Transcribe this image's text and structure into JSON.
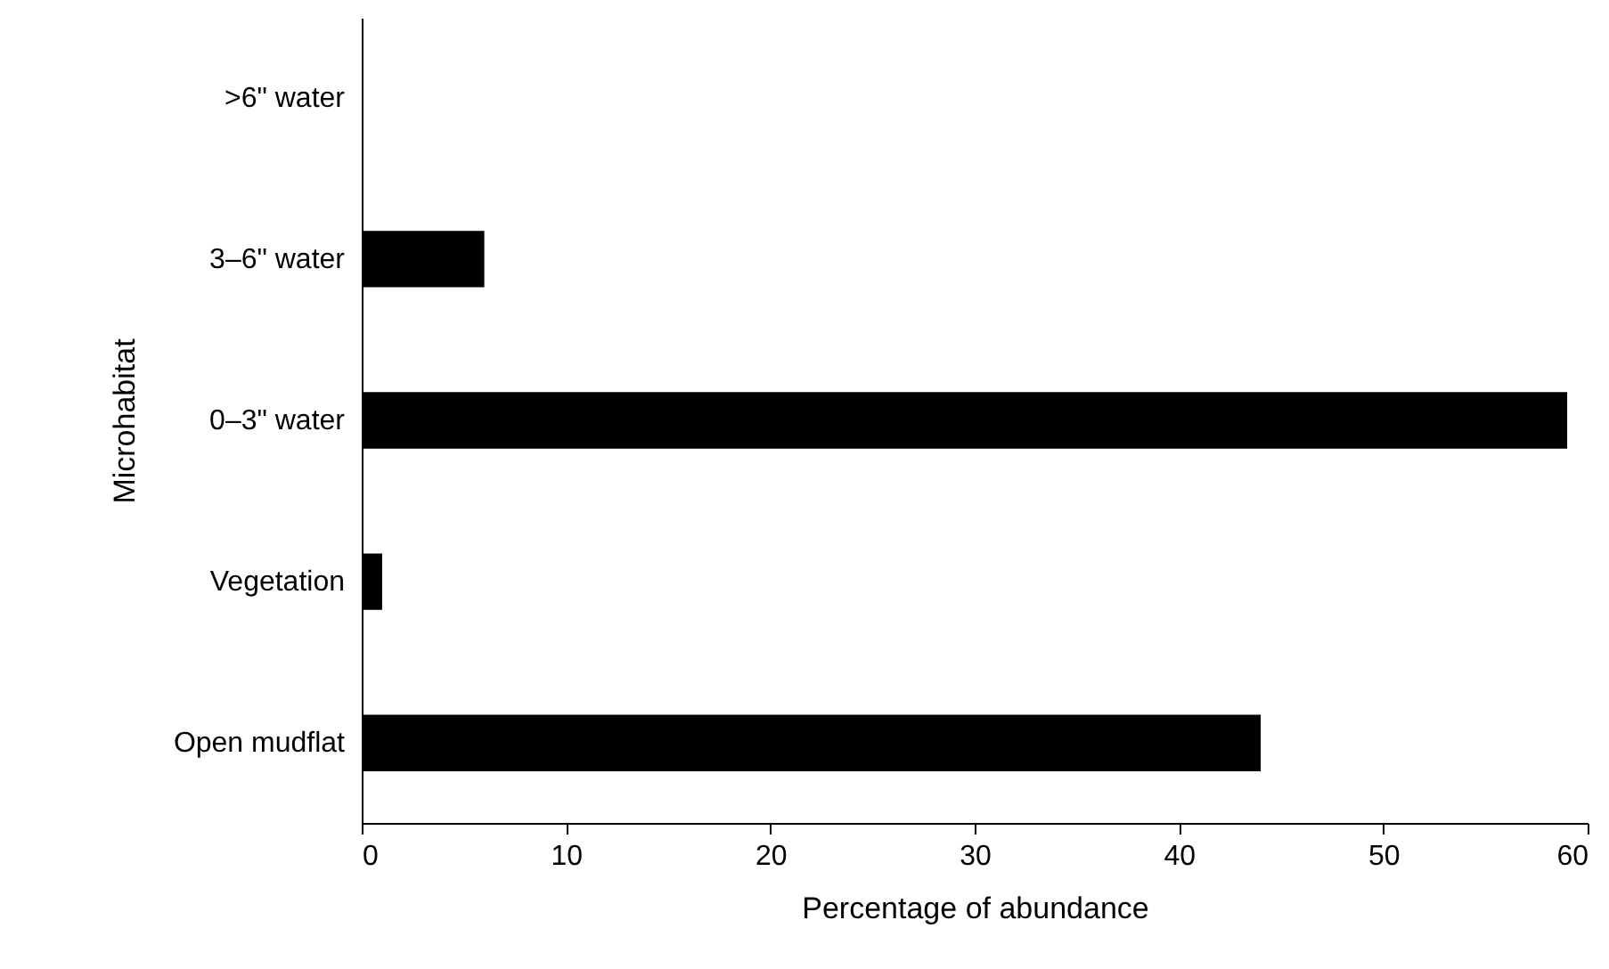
{
  "chart_data": {
    "type": "bar",
    "orientation": "horizontal",
    "xlabel": "Percentage of abundance",
    "ylabel": "Microhabitat",
    "categories": [
      ">6\" water",
      "3–6\" water",
      "0–3\" water",
      "Vegetation",
      "Open mudflat"
    ],
    "values": [
      0,
      6,
      59,
      1,
      44
    ],
    "color": "#000000",
    "xlim": [
      0,
      60
    ],
    "xticks": [
      0,
      10,
      20,
      30,
      40,
      50,
      60
    ],
    "grid": false
  }
}
